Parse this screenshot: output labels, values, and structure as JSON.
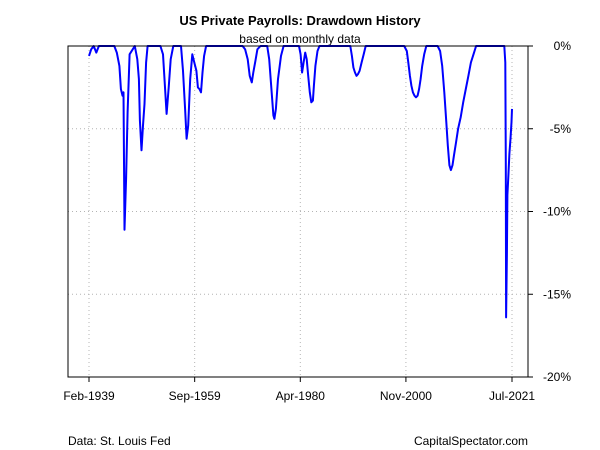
{
  "chart_data": {
    "type": "line",
    "title": "US Private Payrolls: Drawdown History",
    "subtitle": "based on monthly data",
    "xlabel": "",
    "ylabel": "",
    "x_tick_labels": [
      "Feb-1939",
      "Sep-1959",
      "Apr-1980",
      "Nov-2000",
      "Jul-2021"
    ],
    "x_tick_years": [
      1939.08,
      1959.67,
      1980.25,
      2000.83,
      2021.5
    ],
    "xlim": [
      1939.08,
      2021.5
    ],
    "y_tick_labels": [
      "0%",
      "-5%",
      "-10%",
      "-15%",
      "-20%"
    ],
    "y_tick_values": [
      0,
      -5,
      -10,
      -15,
      -20
    ],
    "ylim": [
      -20,
      0
    ],
    "y_axis_side": "right",
    "grid": true,
    "line_color": "#0000ff",
    "series": [
      {
        "x": [
          1939.08,
          1939.5,
          1940.0,
          1940.5,
          1941.0,
          1942.0,
          1943.0,
          1944.0,
          1944.5,
          1945.0,
          1945.3,
          1945.6,
          1945.8,
          1946.0,
          1946.3,
          1946.6,
          1947.0,
          1948.0,
          1948.5,
          1948.8,
          1949.0,
          1949.3,
          1949.6,
          1949.9,
          1950.2,
          1950.5,
          1951.0,
          1952.0,
          1953.0,
          1953.5,
          1953.8,
          1954.2,
          1954.6,
          1955.0,
          1955.5,
          1956.0,
          1957.0,
          1957.4,
          1957.8,
          1958.1,
          1958.4,
          1958.8,
          1959.2,
          1959.6,
          1960.0,
          1960.3,
          1960.6,
          1960.9,
          1961.2,
          1961.5,
          1961.9,
          1962.5,
          1963.0,
          1965.0,
          1967.0,
          1969.0,
          1969.5,
          1970.0,
          1970.4,
          1970.8,
          1971.1,
          1971.5,
          1971.9,
          1972.5,
          1973.0,
          1973.8,
          1974.2,
          1974.6,
          1975.0,
          1975.2,
          1975.5,
          1975.9,
          1976.5,
          1977.0,
          1979.0,
          1980.0,
          1980.3,
          1980.6,
          1980.9,
          1981.2,
          1981.5,
          1981.8,
          1982.1,
          1982.4,
          1982.7,
          1982.9,
          1983.2,
          1983.6,
          1984.0,
          1986.0,
          1988.0,
          1990.0,
          1990.3,
          1990.6,
          1990.9,
          1991.2,
          1991.5,
          1991.8,
          1992.2,
          1992.6,
          1993.0,
          1995.0,
          1998.0,
          2000.5,
          2001.0,
          2001.3,
          2001.6,
          2001.9,
          2002.2,
          2002.5,
          2002.8,
          2003.1,
          2003.4,
          2003.7,
          2004.0,
          2004.4,
          2004.8,
          2005.2,
          2005.6,
          2006.0,
          2007.0,
          2007.5,
          2007.9,
          2008.3,
          2008.7,
          2009.0,
          2009.3,
          2009.6,
          2009.9,
          2010.2,
          2010.6,
          2011.0,
          2011.5,
          2012.0,
          2012.5,
          2013.0,
          2013.5,
          2014.0,
          2014.5,
          2015.0,
          2016.0,
          2017.0,
          2018.0,
          2019.0,
          2020.0,
          2020.2,
          2020.3,
          2020.35,
          2020.5,
          2020.6,
          2020.8,
          2021.0,
          2021.2,
          2021.4,
          2021.5
        ],
        "values": [
          -0.6,
          -0.2,
          0.0,
          -0.4,
          0.0,
          0.0,
          0.0,
          0.0,
          -0.4,
          -1.2,
          -2.6,
          -3.0,
          -2.8,
          -11.1,
          -8.0,
          -4.0,
          -0.5,
          0.0,
          -0.8,
          -2.0,
          -4.5,
          -6.3,
          -4.8,
          -3.5,
          -1.0,
          0.0,
          0.0,
          0.0,
          0.0,
          -0.5,
          -2.0,
          -4.1,
          -2.5,
          -0.8,
          0.0,
          0.0,
          0.0,
          -1.5,
          -3.8,
          -5.6,
          -4.8,
          -2.0,
          -0.5,
          -1.0,
          -1.5,
          -2.5,
          -2.6,
          -2.8,
          -1.6,
          -0.6,
          0.0,
          0.0,
          0.0,
          0.0,
          0.0,
          0.0,
          -0.2,
          -0.8,
          -1.8,
          -2.2,
          -1.6,
          -0.9,
          -0.2,
          0.0,
          0.0,
          0.0,
          -0.8,
          -2.5,
          -4.2,
          -4.4,
          -3.8,
          -2.0,
          -0.6,
          0.0,
          0.0,
          0.0,
          -0.5,
          -1.6,
          -1.0,
          -0.4,
          -0.8,
          -1.8,
          -2.8,
          -3.4,
          -3.3,
          -2.4,
          -1.2,
          -0.3,
          0.0,
          0.0,
          0.0,
          0.0,
          -0.6,
          -1.3,
          -1.6,
          -1.8,
          -1.7,
          -1.5,
          -1.0,
          -0.5,
          0.0,
          0.0,
          0.0,
          0.0,
          -0.3,
          -1.0,
          -1.8,
          -2.4,
          -2.8,
          -3.0,
          -3.1,
          -3.0,
          -2.6,
          -2.0,
          -1.2,
          -0.5,
          0.0,
          0.0,
          0.0,
          0.0,
          0.0,
          -0.3,
          -1.2,
          -2.8,
          -4.6,
          -6.0,
          -7.2,
          -7.5,
          -7.2,
          -6.6,
          -5.8,
          -5.0,
          -4.3,
          -3.4,
          -2.6,
          -1.8,
          -1.0,
          -0.5,
          0.0,
          0.0,
          0.0,
          0.0,
          0.0,
          0.0,
          0.0,
          -1.0,
          -7.0,
          -16.4,
          -12.6,
          -9.0,
          -7.8,
          -6.5,
          -5.6,
          -4.6,
          -3.8
        ]
      }
    ]
  },
  "footer": {
    "source": "Data: St. Louis Fed",
    "brand": "CapitalSpectator.com"
  }
}
